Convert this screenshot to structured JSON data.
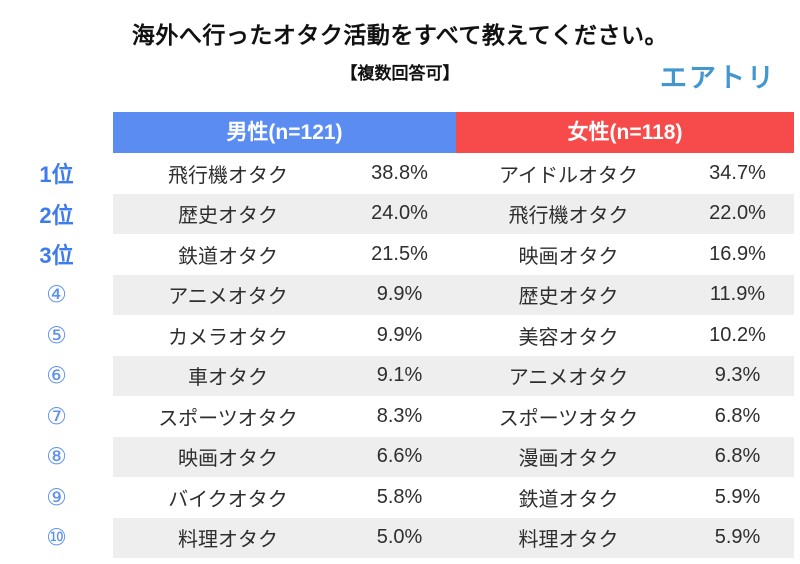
{
  "header": {
    "title": "海外へ行ったオタク活動をすべて教えてください。",
    "subtitle": "【複数回答可】",
    "logo_text": "エアトリ"
  },
  "colors": {
    "male_header": "#5b8cf2",
    "female_header": "#f74b4b",
    "alt_row": "#eeeeee",
    "rank_blue": "#3d7bee",
    "logo_blue": "#4397cf"
  },
  "table": {
    "columns": [
      {
        "label": "男性(n=121)",
        "color": "#5b8cf2"
      },
      {
        "label": "女性(n=118)",
        "color": "#f74b4b"
      }
    ],
    "rows": [
      {
        "rank": "1位",
        "male": {
          "category": "飛行機オタク",
          "value": "38.8%"
        },
        "female": {
          "category": "アイドルオタク",
          "value": "34.7%"
        }
      },
      {
        "rank": "2位",
        "male": {
          "category": "歴史オタク",
          "value": "24.0%"
        },
        "female": {
          "category": "飛行機オタク",
          "value": "22.0%"
        }
      },
      {
        "rank": "3位",
        "male": {
          "category": "鉄道オタク",
          "value": "21.5%"
        },
        "female": {
          "category": "映画オタク",
          "value": "16.9%"
        }
      },
      {
        "rank": "④",
        "male": {
          "category": "アニメオタク",
          "value": "9.9%"
        },
        "female": {
          "category": "歴史オタク",
          "value": "11.9%"
        }
      },
      {
        "rank": "⑤",
        "male": {
          "category": "カメラオタク",
          "value": "9.9%"
        },
        "female": {
          "category": "美容オタク",
          "value": "10.2%"
        }
      },
      {
        "rank": "⑥",
        "male": {
          "category": "車オタク",
          "value": "9.1%"
        },
        "female": {
          "category": "アニメオタク",
          "value": "9.3%"
        }
      },
      {
        "rank": "⑦",
        "male": {
          "category": "スポーツオタク",
          "value": "8.3%"
        },
        "female": {
          "category": "スポーツオタク",
          "value": "6.8%"
        }
      },
      {
        "rank": "⑧",
        "male": {
          "category": "映画オタク",
          "value": "6.6%"
        },
        "female": {
          "category": "漫画オタク",
          "value": "6.8%"
        }
      },
      {
        "rank": "⑨",
        "male": {
          "category": "バイクオタク",
          "value": "5.8%"
        },
        "female": {
          "category": "鉄道オタク",
          "value": "5.9%"
        }
      },
      {
        "rank": "⑩",
        "male": {
          "category": "料理オタク",
          "value": "5.0%"
        },
        "female": {
          "category": "料理オタク",
          "value": "5.9%"
        }
      }
    ]
  },
  "chart_data": {
    "type": "table",
    "title": "海外へ行ったオタク活動をすべて教えてください。",
    "subtitle": "【複数回答可】",
    "ranks": [
      "1位",
      "2位",
      "3位",
      "④",
      "⑤",
      "⑥",
      "⑦",
      "⑧",
      "⑨",
      "⑩"
    ],
    "groups": [
      {
        "name": "男性(n=121)",
        "categories": [
          "飛行機オタク",
          "歴史オタク",
          "鉄道オタク",
          "アニメオタク",
          "カメラオタク",
          "車オタク",
          "スポーツオタク",
          "映画オタク",
          "バイクオタク",
          "料理オタク"
        ],
        "values_pct": [
          38.8,
          24.0,
          21.5,
          9.9,
          9.9,
          9.1,
          8.3,
          6.6,
          5.8,
          5.0
        ]
      },
      {
        "name": "女性(n=118)",
        "categories": [
          "アイドルオタク",
          "飛行機オタク",
          "映画オタク",
          "歴史オタク",
          "美容オタク",
          "アニメオタク",
          "スポーツオタク",
          "漫画オタク",
          "鉄道オタク",
          "料理オタク"
        ],
        "values_pct": [
          34.7,
          22.0,
          16.9,
          11.9,
          10.2,
          9.3,
          6.8,
          6.8,
          5.9,
          5.9
        ]
      }
    ]
  }
}
